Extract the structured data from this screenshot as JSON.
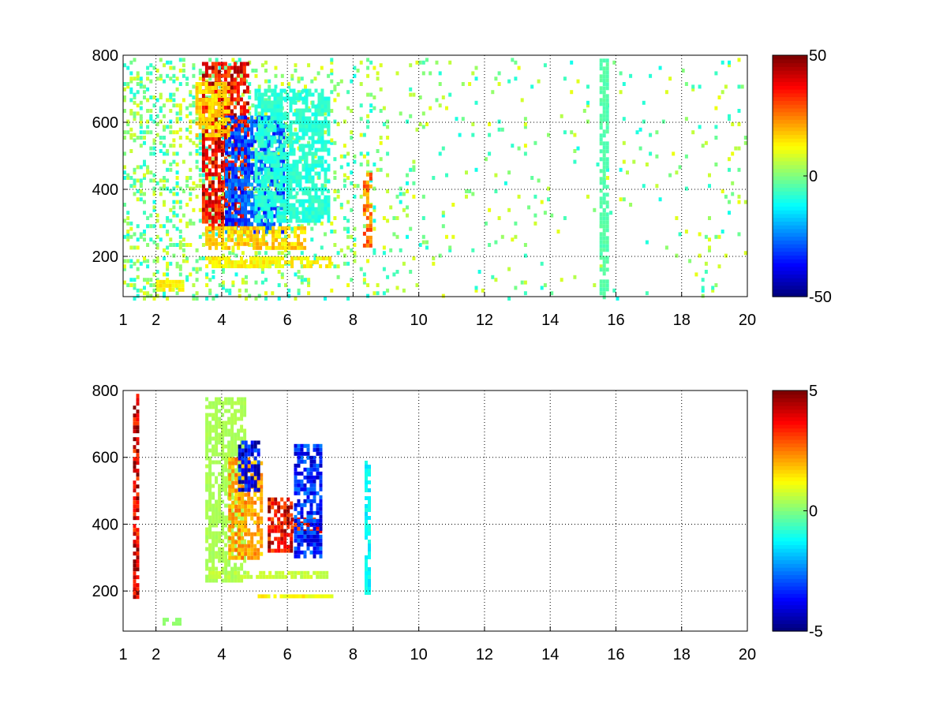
{
  "chart_data": [
    {
      "type": "heatmap",
      "title": "",
      "xlabel": "",
      "ylabel": "",
      "xlim": [
        1,
        20
      ],
      "ylim": [
        80,
        800
      ],
      "grid": true,
      "x_ticks": [
        1,
        2,
        4,
        6,
        8,
        10,
        12,
        14,
        16,
        18,
        20
      ],
      "y_ticks": [
        200,
        400,
        600,
        800
      ],
      "colormap": "jet",
      "clim": [
        -50,
        50
      ],
      "colorbar_ticks": [
        -50,
        0,
        50
      ],
      "features": [
        {
          "x": [
            3.4,
            4.8
          ],
          "y": [
            280,
            780
          ],
          "value": 45
        },
        {
          "x": [
            4.1,
            5.9
          ],
          "y": [
            270,
            620
          ],
          "value": -35
        },
        {
          "x": [
            3.2,
            4.2
          ],
          "y": [
            560,
            720
          ],
          "value": 20
        },
        {
          "x": [
            3.5,
            6.5
          ],
          "y": [
            230,
            290
          ],
          "value": 20
        },
        {
          "x": [
            3.5,
            7.3
          ],
          "y": [
            170,
            200
          ],
          "value": 15
        },
        {
          "x": [
            5.0,
            7.3
          ],
          "y": [
            300,
            700
          ],
          "value": -10
        },
        {
          "x": [
            8.3,
            8.5
          ],
          "y": [
            230,
            450
          ],
          "value": 30
        },
        {
          "x": [
            2.0,
            2.8
          ],
          "y": [
            100,
            130
          ],
          "value": 15
        },
        {
          "x": [
            15.5,
            15.7
          ],
          "y": [
            80,
            790
          ],
          "value": -5
        }
      ],
      "sparse_noise": {
        "x_range": [
          1,
          20
        ],
        "y_range": [
          80,
          800
        ],
        "values": [
          -8,
          0,
          8
        ],
        "density_decreases_with_x": true
      }
    },
    {
      "type": "heatmap",
      "title": "",
      "xlabel": "",
      "ylabel": "",
      "xlim": [
        1,
        20
      ],
      "ylim": [
        80,
        800
      ],
      "grid": true,
      "x_ticks": [
        1,
        2,
        4,
        6,
        8,
        10,
        12,
        14,
        16,
        18,
        20
      ],
      "y_ticks": [
        200,
        400,
        600,
        800
      ],
      "colormap": "jet",
      "clim": [
        -5,
        5
      ],
      "colorbar_ticks": [
        -5,
        0,
        5
      ],
      "features": [
        {
          "x": [
            3.5,
            4.7
          ],
          "y": [
            230,
            780
          ],
          "value": 0.5
        },
        {
          "x": [
            4.2,
            5.2
          ],
          "y": [
            300,
            600
          ],
          "value": 2.5
        },
        {
          "x": [
            5.4,
            6.1
          ],
          "y": [
            320,
            480
          ],
          "value": 4.5
        },
        {
          "x": [
            6.1,
            7.0
          ],
          "y": [
            380,
            420
          ],
          "value": 4.5
        },
        {
          "x": [
            6.2,
            7.0
          ],
          "y": [
            300,
            640
          ],
          "value": -4.0
        },
        {
          "x": [
            4.5,
            5.1
          ],
          "y": [
            500,
            650
          ],
          "value": -4.5
        },
        {
          "x": [
            3.6,
            7.2
          ],
          "y": [
            240,
            260
          ],
          "value": 0.8
        },
        {
          "x": [
            5.0,
            7.4
          ],
          "y": [
            180,
            190
          ],
          "value": 1.5
        },
        {
          "x": [
            8.35,
            8.45
          ],
          "y": [
            190,
            590
          ],
          "value": -1.5
        },
        {
          "x": [
            2.2,
            2.7
          ],
          "y": [
            100,
            120
          ],
          "value": 0.2
        },
        {
          "x": [
            1.3,
            1.4
          ],
          "y": [
            180,
            790
          ],
          "value": 5
        }
      ]
    }
  ]
}
